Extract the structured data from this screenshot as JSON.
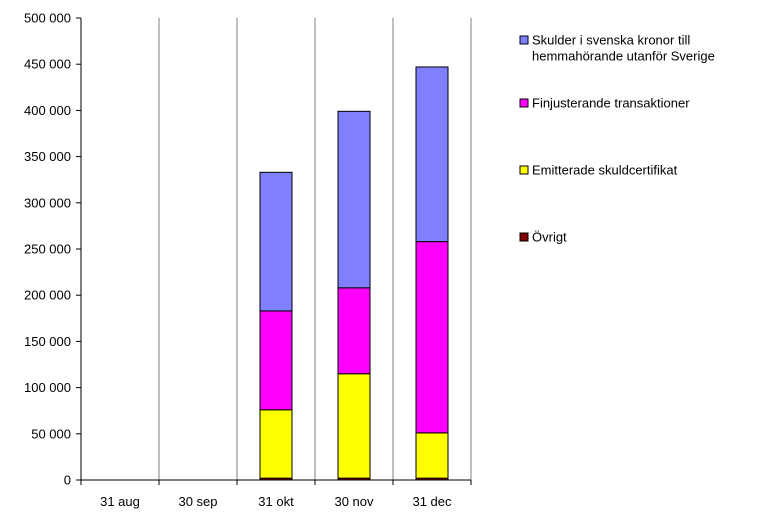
{
  "chart_data": {
    "type": "bar",
    "stacked": true,
    "categories": [
      "31 aug",
      "30 sep",
      "31 okt",
      "30 nov",
      "31 dec"
    ],
    "series": [
      {
        "name": "Övrigt",
        "color": "#800000",
        "values": [
          0,
          0,
          2000,
          2000,
          2000
        ]
      },
      {
        "name": "Emitterade skuldcertifikat",
        "color": "#ffff00",
        "values": [
          0,
          0,
          74000,
          113000,
          49000
        ]
      },
      {
        "name": "Finjusterande transaktioner",
        "color": "#ff00ff",
        "values": [
          0,
          0,
          107000,
          93000,
          207000
        ]
      },
      {
        "name": "Skulder i svenska kronor till hemmahörande utanför Sverige",
        "color": "#8080ff",
        "values": [
          0,
          0,
          150000,
          191000,
          189000
        ]
      }
    ],
    "ylim": [
      0,
      500000
    ],
    "yticks": [
      "0",
      "50 000",
      "100 000",
      "150 000",
      "200 000",
      "250 000",
      "300 000",
      "350 000",
      "400 000",
      "450 000",
      "500 000"
    ],
    "grid": {
      "vertical": true,
      "horizontal": false
    },
    "legend": {
      "position": "right",
      "entries": [
        {
          "lines": [
            "Skulder i svenska kronor till",
            "hemmahörande utanför Sverige"
          ],
          "color": "#8080ff"
        },
        {
          "lines": [
            "Finjusterande transaktioner"
          ],
          "color": "#ff00ff"
        },
        {
          "lines": [
            "Emitterade skuldcertifikat"
          ],
          "color": "#ffff00"
        },
        {
          "lines": [
            "Övrigt"
          ],
          "color": "#800000"
        }
      ]
    },
    "title": "",
    "xlabel": "",
    "ylabel": ""
  }
}
